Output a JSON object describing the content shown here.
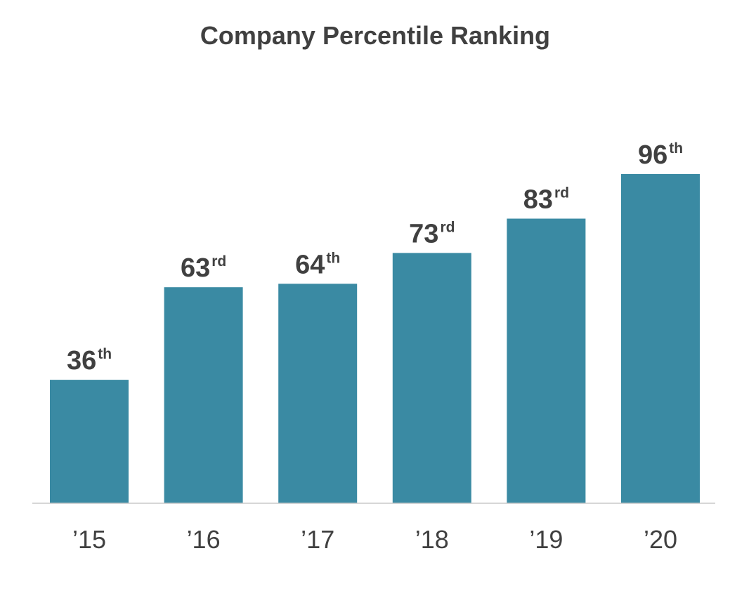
{
  "chart_data": {
    "type": "bar",
    "title": "Company Percentile Ranking",
    "categories": [
      "’15",
      "’16",
      "’17",
      "’18",
      "’19",
      "’20"
    ],
    "values": [
      36,
      63,
      64,
      73,
      83,
      96
    ],
    "value_suffixes": [
      "th",
      "rd",
      "th",
      "rd",
      "rd",
      "th"
    ],
    "xlabel": "",
    "ylabel": "",
    "ylim": [
      0,
      100
    ],
    "grid": false,
    "legend": "none",
    "colors": {
      "bar": "#3a8aa3",
      "text": "#404040",
      "baseline": "#c8c8c8",
      "background": "#ffffff"
    }
  }
}
